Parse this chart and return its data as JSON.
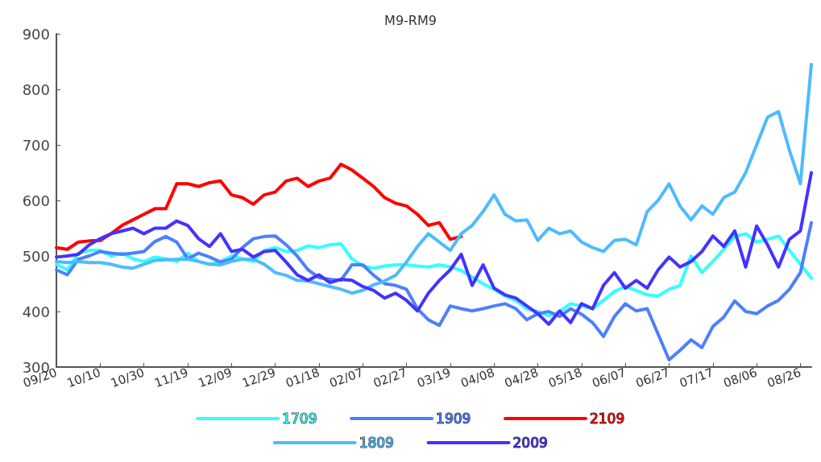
{
  "chart_data": {
    "type": "line",
    "title": "M9-RM9",
    "categories": [
      "09/20",
      null,
      null,
      null,
      "10/10",
      null,
      null,
      null,
      "10/30",
      null,
      null,
      null,
      "11/19",
      null,
      null,
      null,
      "12/09",
      null,
      null,
      null,
      "12/29",
      null,
      null,
      null,
      "01/18",
      null,
      null,
      null,
      "02/07",
      null,
      null,
      null,
      "02/27",
      null,
      null,
      null,
      "03/19",
      null,
      null,
      null,
      "04/08",
      null,
      null,
      null,
      "04/28",
      null,
      null,
      null,
      "05/18",
      null,
      null,
      null,
      "06/07",
      null,
      null,
      null,
      "06/27",
      null,
      null,
      null,
      "07/17",
      null,
      null,
      null,
      "08/06",
      null,
      null,
      null,
      "08/26",
      null
    ],
    "series": [
      {
        "name": "1709",
        "color": "#33ffff",
        "values": [
          485,
          475,
          505,
          510,
          510,
          500,
          505,
          495,
          490,
          498,
          495,
          490,
          505,
          490,
          485,
          490,
          500,
          495,
          490,
          510,
          515,
          508,
          510,
          518,
          515,
          520,
          522,
          495,
          482,
          478,
          482,
          484,
          484,
          482,
          480,
          484,
          480,
          474,
          462,
          450,
          440,
          428,
          420,
          405,
          400,
          392,
          400,
          414,
          410,
          405,
          420,
          436,
          445,
          438,
          430,
          428,
          440,
          447,
          500,
          470,
          490,
          512,
          535,
          540,
          525,
          530,
          536,
          510,
          485,
          460
        ]
      },
      {
        "name": "1909",
        "color": "#4d7fff",
        "values": [
          475,
          466,
          494,
          500,
          508,
          505,
          503,
          505,
          508,
          526,
          535,
          525,
          495,
          505,
          498,
          489,
          494,
          515,
          531,
          535,
          536,
          520,
          500,
          475,
          461,
          458,
          456,
          484,
          484,
          465,
          450,
          447,
          440,
          405,
          385,
          375,
          410,
          405,
          401,
          405,
          410,
          414,
          405,
          385,
          396,
          400,
          391,
          405,
          395,
          380,
          355,
          391,
          414,
          401,
          405,
          359,
          313,
          330,
          349,
          335,
          373,
          390,
          419,
          400,
          396,
          410,
          420,
          440,
          470,
          560
        ]
      },
      {
        "name": "2109",
        "color": "#ff0000",
        "values": [
          515,
          512,
          525,
          527,
          528,
          540,
          555,
          565,
          575,
          585,
          585,
          630,
          630,
          625,
          632,
          635,
          610,
          605,
          593,
          610,
          615,
          635,
          640,
          625,
          635,
          640,
          665,
          655,
          640,
          625,
          605,
          595,
          590,
          575,
          555,
          560,
          530,
          535,
          null,
          null,
          null,
          null,
          null,
          null,
          null,
          null,
          null,
          null,
          null,
          null,
          null,
          null,
          null,
          null,
          null,
          null,
          null,
          null,
          null,
          null,
          null,
          null,
          null,
          null,
          null,
          null,
          null,
          null,
          null,
          null
        ]
      },
      {
        "name": "1809",
        "color": "#4dbbff",
        "values": [
          490,
          488,
          490,
          488,
          488,
          485,
          480,
          478,
          485,
          492,
          493,
          494,
          494,
          490,
          485,
          484,
          490,
          494,
          494,
          485,
          470,
          465,
          456,
          455,
          450,
          445,
          440,
          433,
          438,
          448,
          455,
          465,
          489,
          517,
          540,
          525,
          510,
          540,
          555,
          580,
          610,
          575,
          563,
          565,
          528,
          550,
          540,
          545,
          525,
          515,
          508,
          528,
          530,
          520,
          580,
          600,
          630,
          590,
          565,
          590,
          575,
          605,
          615,
          650,
          700,
          750,
          760,
          690,
          630,
          845
        ]
      },
      {
        "name": "2009",
        "color": "#4433ff",
        "values": [
          498,
          500,
          503,
          520,
          531,
          540,
          545,
          550,
          540,
          550,
          550,
          563,
          555,
          531,
          517,
          540,
          508,
          512,
          498,
          508,
          510,
          489,
          466,
          456,
          466,
          452,
          458,
          456,
          445,
          438,
          424,
          433,
          420,
          401,
          433,
          456,
          475,
          503,
          447,
          484,
          442,
          430,
          424,
          410,
          396,
          377,
          401,
          380,
          414,
          405,
          447,
          470,
          442,
          456,
          442,
          475,
          498,
          480,
          490,
          508,
          536,
          517,
          545,
          480,
          554,
          520,
          480,
          530,
          545,
          650
        ]
      }
    ],
    "ylim": [
      300,
      900
    ],
    "yticks": [
      300,
      400,
      500,
      600,
      700,
      800,
      900
    ],
    "grid": false,
    "legend": "bottom",
    "line_style": "solid",
    "marker": "none"
  }
}
